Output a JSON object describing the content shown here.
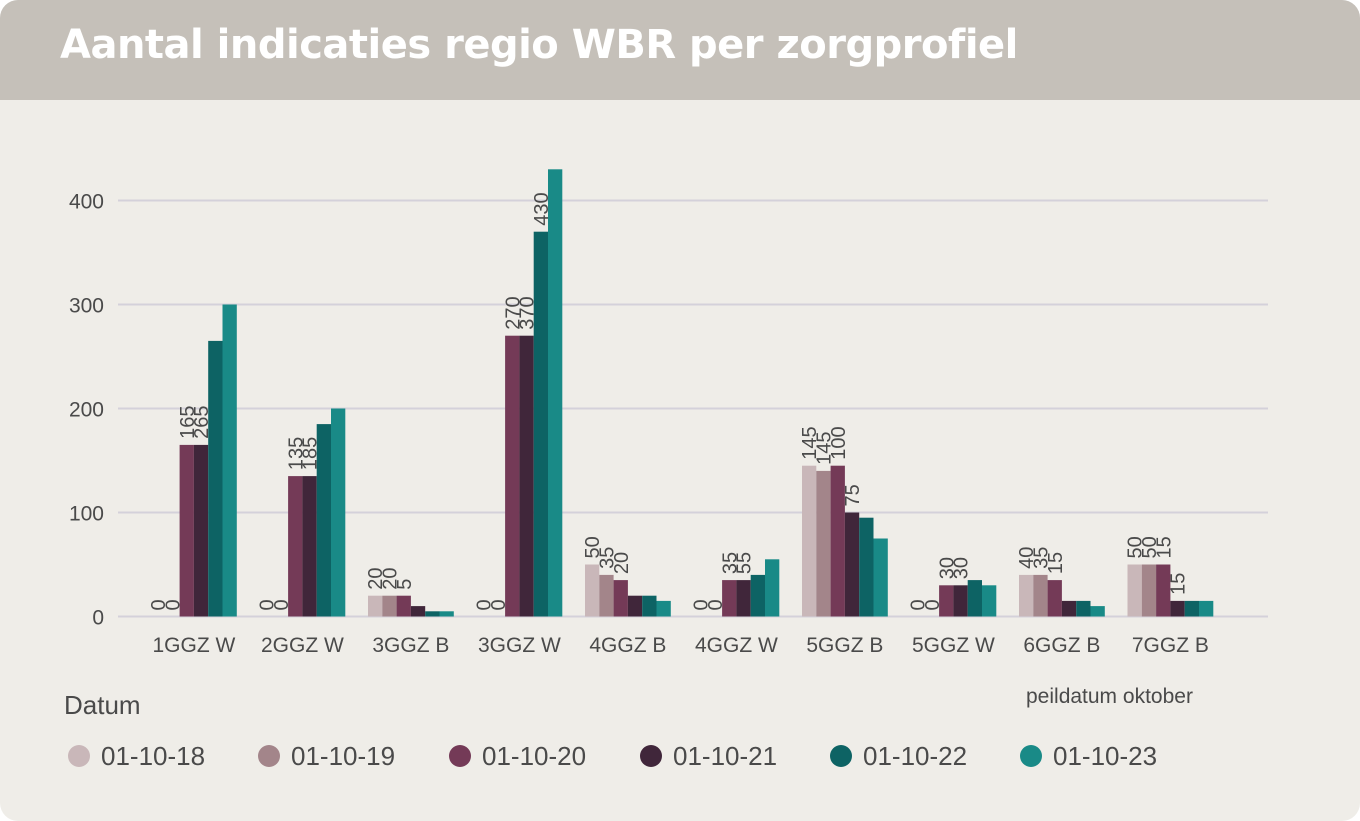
{
  "title": "Aantal indicaties regio WBR per zorgprofiel",
  "legend_title": "Datum",
  "note": "peildatum oktober",
  "chart_data": {
    "type": "bar",
    "categories": [
      "1GGZ W",
      "2GGZ W",
      "3GGZ B",
      "3GGZ W",
      "4GGZ B",
      "4GGZ W",
      "5GGZ B",
      "5GGZ W",
      "6GGZ B",
      "7GGZ B"
    ],
    "series": [
      {
        "name": "01-10-18",
        "color": "#c9b7b9",
        "values": [
          0,
          0,
          20,
          0,
          50,
          0,
          145,
          0,
          40,
          50
        ]
      },
      {
        "name": "01-10-19",
        "color": "#a3858a",
        "values": [
          0,
          0,
          20,
          0,
          40,
          0,
          140,
          0,
          40,
          50
        ]
      },
      {
        "name": "01-10-20",
        "color": "#743a57",
        "values": [
          165,
          135,
          20,
          270,
          35,
          35,
          145,
          30,
          35,
          50
        ]
      },
      {
        "name": "01-10-21",
        "color": "#40263a",
        "values": [
          165,
          135,
          10,
          270,
          20,
          35,
          100,
          30,
          15,
          15
        ]
      },
      {
        "name": "01-10-22",
        "color": "#0d6364",
        "values": [
          265,
          185,
          5,
          370,
          20,
          40,
          95,
          35,
          15,
          15
        ]
      },
      {
        "name": "01-10-23",
        "color": "#198a87",
        "values": [
          300,
          200,
          5,
          430,
          15,
          55,
          75,
          30,
          10,
          15
        ]
      }
    ],
    "data_labels": [
      {
        "category": "1GGZ W",
        "labels": [
          "0",
          "0",
          "165",
          "265"
        ]
      },
      {
        "category": "2GGZ W",
        "labels": [
          "0",
          "0",
          "135",
          "185"
        ]
      },
      {
        "category": "3GGZ B",
        "labels": [
          "20",
          "20",
          "5"
        ]
      },
      {
        "category": "3GGZ W",
        "labels": [
          "0",
          "0",
          "270",
          "370",
          "430"
        ]
      },
      {
        "category": "4GGZ B",
        "labels": [
          "50",
          "35",
          "20"
        ]
      },
      {
        "category": "4GGZ W",
        "labels": [
          "0",
          "0",
          "35",
          "55"
        ]
      },
      {
        "category": "5GGZ B",
        "labels": [
          "145",
          "145",
          "100",
          "75"
        ]
      },
      {
        "category": "5GGZ W",
        "labels": [
          "0",
          "0",
          "30",
          "30"
        ]
      },
      {
        "category": "6GGZ B",
        "labels": [
          "40",
          "35",
          "15"
        ]
      },
      {
        "category": "7GGZ B",
        "labels": [
          "50",
          "50",
          "15",
          "15"
        ]
      }
    ],
    "y_ticks": [
      0,
      100,
      200,
      300,
      400
    ],
    "ylim": [
      0,
      430
    ],
    "grid": true,
    "legend_position": "bottom-left"
  }
}
